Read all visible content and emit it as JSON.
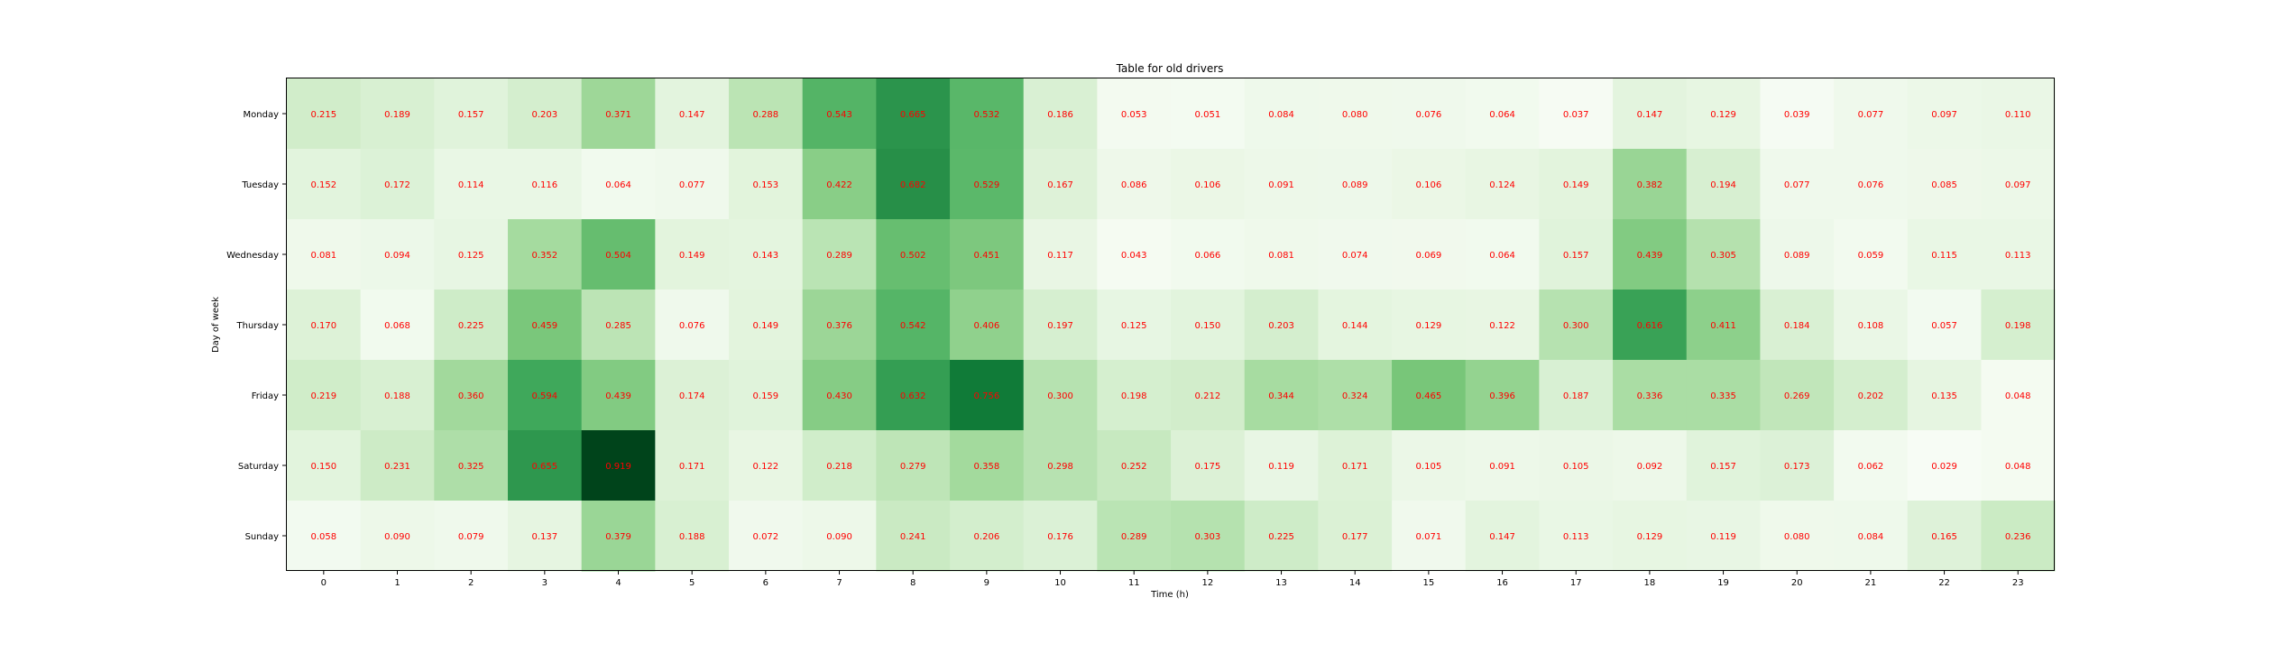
{
  "chart_data": {
    "type": "heatmap",
    "title": "Table for old drivers",
    "xlabel": "Time (h)",
    "ylabel": "Day of week",
    "x_categories": [
      "0",
      "1",
      "2",
      "3",
      "4",
      "5",
      "6",
      "7",
      "8",
      "9",
      "10",
      "11",
      "12",
      "13",
      "14",
      "15",
      "16",
      "17",
      "18",
      "19",
      "20",
      "21",
      "22",
      "23"
    ],
    "y_categories": [
      "Monday",
      "Tuesday",
      "Wednesday",
      "Thursday",
      "Friday",
      "Saturday",
      "Sunday"
    ],
    "values": [
      [
        0.215,
        0.189,
        0.157,
        0.203,
        0.371,
        0.147,
        0.288,
        0.543,
        0.665,
        0.532,
        0.186,
        0.053,
        0.051,
        0.084,
        0.08,
        0.076,
        0.064,
        0.037,
        0.147,
        0.129,
        0.039,
        0.077,
        0.097,
        0.11
      ],
      [
        0.152,
        0.172,
        0.114,
        0.116,
        0.064,
        0.077,
        0.153,
        0.422,
        0.682,
        0.529,
        0.167,
        0.086,
        0.106,
        0.091,
        0.089,
        0.106,
        0.124,
        0.149,
        0.382,
        0.194,
        0.077,
        0.076,
        0.085,
        0.097
      ],
      [
        0.081,
        0.094,
        0.125,
        0.352,
        0.504,
        0.149,
        0.143,
        0.289,
        0.502,
        0.451,
        0.117,
        0.043,
        0.066,
        0.081,
        0.074,
        0.069,
        0.064,
        0.157,
        0.439,
        0.305,
        0.089,
        0.059,
        0.115,
        0.113
      ],
      [
        0.17,
        0.068,
        0.225,
        0.459,
        0.285,
        0.076,
        0.149,
        0.376,
        0.542,
        0.406,
        0.197,
        0.125,
        0.15,
        0.203,
        0.144,
        0.129,
        0.122,
        0.3,
        0.616,
        0.411,
        0.184,
        0.108,
        0.057,
        0.198
      ],
      [
        0.219,
        0.188,
        0.36,
        0.594,
        0.439,
        0.174,
        0.159,
        0.43,
        0.632,
        0.756,
        0.3,
        0.198,
        0.212,
        0.344,
        0.324,
        0.465,
        0.396,
        0.187,
        0.336,
        0.335,
        0.269,
        0.202,
        0.135,
        0.048
      ],
      [
        0.15,
        0.231,
        0.325,
        0.655,
        0.919,
        0.171,
        0.122,
        0.218,
        0.279,
        0.358,
        0.298,
        0.252,
        0.175,
        0.119,
        0.171,
        0.105,
        0.091,
        0.105,
        0.092,
        0.157,
        0.173,
        0.062,
        0.029,
        0.048
      ],
      [
        0.058,
        0.09,
        0.079,
        0.137,
        0.379,
        0.188,
        0.072,
        0.09,
        0.241,
        0.206,
        0.176,
        0.289,
        0.303,
        0.225,
        0.177,
        0.071,
        0.147,
        0.113,
        0.129,
        0.119,
        0.08,
        0.084,
        0.165,
        0.236
      ]
    ],
    "colormap": "Greens",
    "value_label_color": "#ff0000",
    "grid": false,
    "legend": "none"
  }
}
